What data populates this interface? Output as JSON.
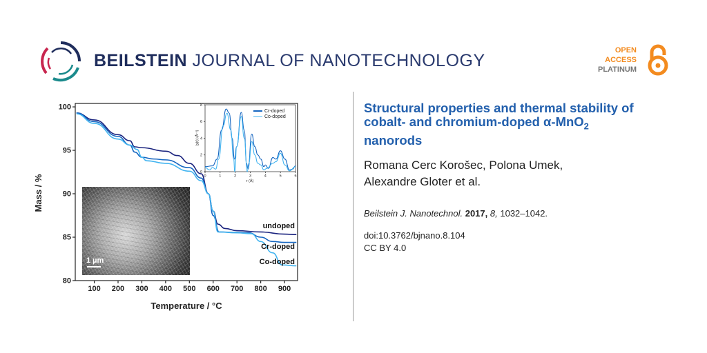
{
  "header": {
    "journal_bold": "BEILSTEIN",
    "journal_light": "JOURNAL OF NANOTECHNOLOGY",
    "badge": {
      "line1": "OPEN",
      "line2": "ACCESS",
      "line3": "PLATINUM"
    },
    "colors": {
      "brand": "#1f2d5c",
      "logo_red": "#c8264f",
      "logo_teal": "#1a8a8c",
      "oa_orange": "#f38b1f"
    }
  },
  "article": {
    "title_main": "Structural properties and thermal stability of cobalt- and chromium-doped α-MnO",
    "title_sub": "2",
    "title_end": "nanorods",
    "authors_line1": "Romana Cerc Korošec, Polona Umek,",
    "authors_line2": "Alexandre Gloter et al.",
    "journal_abbrev": "Beilstein J. Nanotechnol.",
    "year": "2017,",
    "volume": "8,",
    "pages": "1032–1042.",
    "doi": "doi:10.3762/bjnano.8.104",
    "license": "CC BY 4.0",
    "title_color": "#2360ad"
  },
  "image": {
    "scale_label": "1 µm"
  },
  "chart_data": [
    {
      "type": "line",
      "xlabel": "Temperature /   °C",
      "ylabel": "Mass / %",
      "xlim": [
        20,
        955
      ],
      "ylim": [
        80,
        100.4
      ],
      "xticks": [
        100,
        200,
        300,
        400,
        500,
        600,
        700,
        800,
        900
      ],
      "yticks": [
        80,
        85,
        90,
        95,
        100
      ],
      "grid": false,
      "series": [
        {
          "name": "undoped",
          "color": "#1a237e",
          "x": [
            25,
            100,
            200,
            250,
            270,
            300,
            400,
            450,
            500,
            550,
            580,
            600,
            620,
            650,
            700,
            800,
            900,
            950
          ],
          "y": [
            99.3,
            98.5,
            96.8,
            96.1,
            95.4,
            95.3,
            94.9,
            94.4,
            93.5,
            92.3,
            90,
            88,
            86.5,
            86,
            85.75,
            85.6,
            85.35,
            85.3
          ]
        },
        {
          "name": "Cr-doped",
          "color": "#1565c0",
          "x": [
            25,
            100,
            200,
            250,
            270,
            300,
            350,
            400,
            500,
            550,
            580,
            600,
            625,
            700,
            750,
            800,
            850,
            900,
            950
          ],
          "y": [
            99.3,
            98.3,
            96.6,
            95.6,
            94.8,
            94.2,
            94.0,
            93.9,
            93.0,
            91.8,
            90,
            87.5,
            85.6,
            85.55,
            85.5,
            85.0,
            84.5,
            84.4,
            84.4
          ]
        },
        {
          "name": "Co-doped",
          "color": "#42b4f0",
          "x": [
            25,
            100,
            200,
            250,
            280,
            300,
            320,
            400,
            500,
            550,
            580,
            600,
            620,
            700,
            760,
            800,
            850,
            890,
            950
          ],
          "y": [
            99.2,
            98.1,
            96.3,
            95.6,
            95.1,
            94.2,
            93.8,
            93.5,
            92.6,
            91.5,
            90,
            88,
            85.6,
            85.5,
            85.4,
            84.5,
            83.2,
            81.8,
            81.7
          ]
        }
      ]
    },
    {
      "type": "line",
      "xlabel": "r (Å)",
      "ylabel": "|χ(r)| (Å⁻³)",
      "xlim": [
        0,
        6
      ],
      "ylim": [
        0,
        8
      ],
      "xticks": [
        0,
        1,
        2,
        3,
        4,
        5,
        6
      ],
      "yticks": [
        0,
        2,
        4,
        6,
        8
      ],
      "legend": "top-right",
      "series": [
        {
          "name": "Cr-doped",
          "color": "#1565c0",
          "x": [
            0,
            0.5,
            0.8,
            1.1,
            1.4,
            1.6,
            1.8,
            1.95,
            2.1,
            2.4,
            2.6,
            2.75,
            2.85,
            3.1,
            3.3,
            3.5,
            3.7,
            3.9,
            4.0,
            4.2,
            4.5,
            4.7,
            5.0,
            5.3,
            5.6,
            5.8,
            6
          ],
          "y": [
            0.6,
            0.7,
            1.5,
            5,
            7.5,
            7,
            4,
            1.5,
            3,
            7.1,
            5,
            1,
            0.3,
            4.5,
            3,
            2,
            1.5,
            0.6,
            0.8,
            0.4,
            1.7,
            1.5,
            2.5,
            1.5,
            0.2,
            0.3,
            0.7
          ]
        },
        {
          "name": "Co-doped",
          "color": "#42b4f0",
          "x": [
            0,
            0.3,
            0.5,
            0.7,
            0.9,
            1.2,
            1.45,
            1.7,
            1.9,
            1.97,
            2.1,
            2.4,
            2.6,
            2.8,
            2.9,
            3.1,
            3.3,
            3.5,
            3.7,
            3.9,
            4.1,
            4.5,
            4.7,
            5.0,
            5.3,
            5.6,
            6
          ],
          "y": [
            0.5,
            0.2,
            0.5,
            0.3,
            1.5,
            5.5,
            7,
            5,
            1.5,
            0,
            3,
            6.6,
            4,
            0,
            1,
            3.6,
            2,
            1,
            0.8,
            0.2,
            0.4,
            1.0,
            1.2,
            2.2,
            0.8,
            0.1,
            0.6
          ]
        }
      ]
    }
  ]
}
